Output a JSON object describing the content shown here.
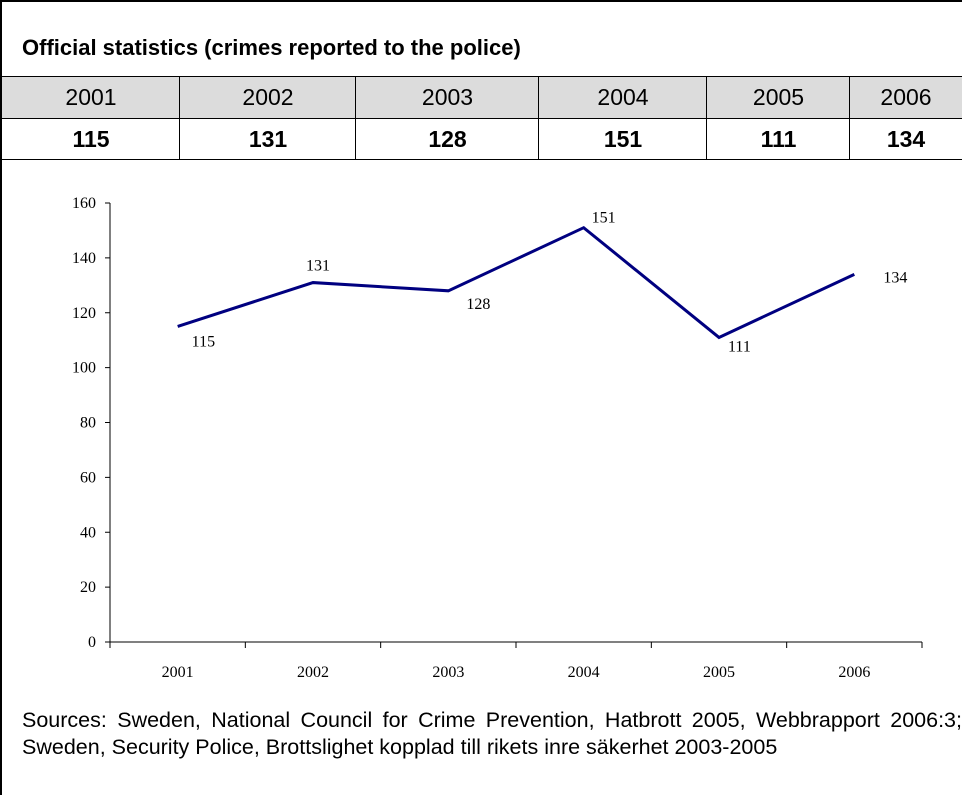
{
  "table": {
    "title": "Official statistics (crimes reported to the police)",
    "years": [
      "2001",
      "2002",
      "2003",
      "2004",
      "2005",
      "2006"
    ],
    "values": [
      "115",
      "131",
      "128",
      "151",
      "111",
      "134"
    ]
  },
  "chart_data": {
    "type": "line",
    "categories": [
      "2001",
      "2002",
      "2003",
      "2004",
      "2005",
      "2006"
    ],
    "series": [
      {
        "values": [
          115,
          131,
          128,
          151,
          111,
          134
        ]
      }
    ],
    "data_labels": [
      "115",
      "131",
      "128",
      "151",
      "111",
      "134"
    ],
    "ylim": [
      0,
      160
    ],
    "yticks": [
      0,
      20,
      40,
      60,
      80,
      100,
      120,
      140,
      160
    ],
    "grid": false,
    "legend": "none",
    "line_color": "#000080"
  },
  "sources": "Sources: Sweden, National Council for Crime Prevention, Hatbrott 2005, Webbrapport 2006:3; Sweden, Security Police, Brottslighet kopplad till rikets inre säkerhet 2003-2005"
}
